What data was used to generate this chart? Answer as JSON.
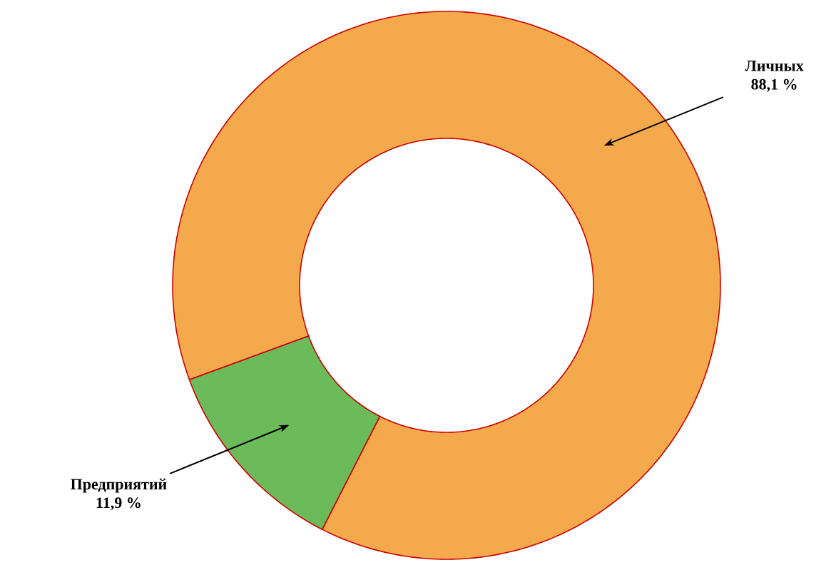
{
  "chart_data": {
    "type": "donut",
    "categories": [
      "Личных",
      "Предприятий"
    ],
    "values": [
      88.1,
      11.9
    ],
    "value_labels": [
      "88,1 %",
      "11,9 %"
    ],
    "colors": [
      "#f4a94c",
      "#6cbb5a"
    ]
  }
}
